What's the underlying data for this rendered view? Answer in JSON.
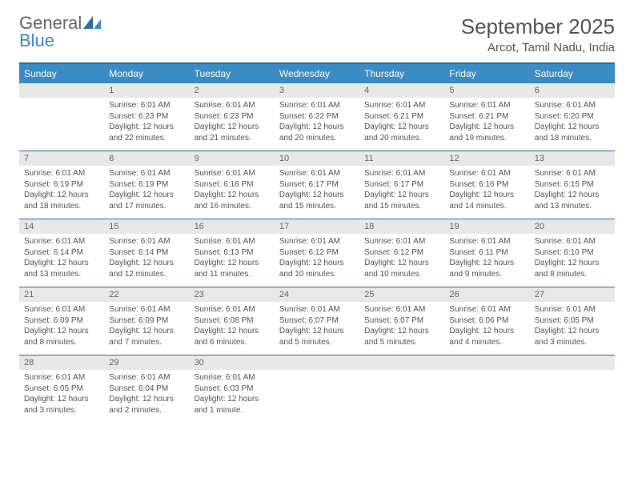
{
  "logo": {
    "general": "General",
    "blue": "Blue"
  },
  "title": "September 2025",
  "location": "Arcot, Tamil Nadu, India",
  "colors": {
    "header_bg": "#3b8bc4",
    "header_border": "#2f6ea3",
    "date_bg": "#e8e8e8",
    "text": "#555555",
    "logo_blue": "#3b8bc4",
    "logo_gray": "#666666"
  },
  "day_names": [
    "Sunday",
    "Monday",
    "Tuesday",
    "Wednesday",
    "Thursday",
    "Friday",
    "Saturday"
  ],
  "weeks": [
    [
      {
        "date": "",
        "sunrise": "",
        "sunset": "",
        "daylight": ""
      },
      {
        "date": "1",
        "sunrise": "Sunrise: 6:01 AM",
        "sunset": "Sunset: 6:23 PM",
        "daylight": "Daylight: 12 hours and 22 minutes."
      },
      {
        "date": "2",
        "sunrise": "Sunrise: 6:01 AM",
        "sunset": "Sunset: 6:23 PM",
        "daylight": "Daylight: 12 hours and 21 minutes."
      },
      {
        "date": "3",
        "sunrise": "Sunrise: 6:01 AM",
        "sunset": "Sunset: 6:22 PM",
        "daylight": "Daylight: 12 hours and 20 minutes."
      },
      {
        "date": "4",
        "sunrise": "Sunrise: 6:01 AM",
        "sunset": "Sunset: 6:21 PM",
        "daylight": "Daylight: 12 hours and 20 minutes."
      },
      {
        "date": "5",
        "sunrise": "Sunrise: 6:01 AM",
        "sunset": "Sunset: 6:21 PM",
        "daylight": "Daylight: 12 hours and 19 minutes."
      },
      {
        "date": "6",
        "sunrise": "Sunrise: 6:01 AM",
        "sunset": "Sunset: 6:20 PM",
        "daylight": "Daylight: 12 hours and 18 minutes."
      }
    ],
    [
      {
        "date": "7",
        "sunrise": "Sunrise: 6:01 AM",
        "sunset": "Sunset: 6:19 PM",
        "daylight": "Daylight: 12 hours and 18 minutes."
      },
      {
        "date": "8",
        "sunrise": "Sunrise: 6:01 AM",
        "sunset": "Sunset: 6:19 PM",
        "daylight": "Daylight: 12 hours and 17 minutes."
      },
      {
        "date": "9",
        "sunrise": "Sunrise: 6:01 AM",
        "sunset": "Sunset: 6:18 PM",
        "daylight": "Daylight: 12 hours and 16 minutes."
      },
      {
        "date": "10",
        "sunrise": "Sunrise: 6:01 AM",
        "sunset": "Sunset: 6:17 PM",
        "daylight": "Daylight: 12 hours and 15 minutes."
      },
      {
        "date": "11",
        "sunrise": "Sunrise: 6:01 AM",
        "sunset": "Sunset: 6:17 PM",
        "daylight": "Daylight: 12 hours and 15 minutes."
      },
      {
        "date": "12",
        "sunrise": "Sunrise: 6:01 AM",
        "sunset": "Sunset: 6:16 PM",
        "daylight": "Daylight: 12 hours and 14 minutes."
      },
      {
        "date": "13",
        "sunrise": "Sunrise: 6:01 AM",
        "sunset": "Sunset: 6:15 PM",
        "daylight": "Daylight: 12 hours and 13 minutes."
      }
    ],
    [
      {
        "date": "14",
        "sunrise": "Sunrise: 6:01 AM",
        "sunset": "Sunset: 6:14 PM",
        "daylight": "Daylight: 12 hours and 13 minutes."
      },
      {
        "date": "15",
        "sunrise": "Sunrise: 6:01 AM",
        "sunset": "Sunset: 6:14 PM",
        "daylight": "Daylight: 12 hours and 12 minutes."
      },
      {
        "date": "16",
        "sunrise": "Sunrise: 6:01 AM",
        "sunset": "Sunset: 6:13 PM",
        "daylight": "Daylight: 12 hours and 11 minutes."
      },
      {
        "date": "17",
        "sunrise": "Sunrise: 6:01 AM",
        "sunset": "Sunset: 6:12 PM",
        "daylight": "Daylight: 12 hours and 10 minutes."
      },
      {
        "date": "18",
        "sunrise": "Sunrise: 6:01 AM",
        "sunset": "Sunset: 6:12 PM",
        "daylight": "Daylight: 12 hours and 10 minutes."
      },
      {
        "date": "19",
        "sunrise": "Sunrise: 6:01 AM",
        "sunset": "Sunset: 6:11 PM",
        "daylight": "Daylight: 12 hours and 9 minutes."
      },
      {
        "date": "20",
        "sunrise": "Sunrise: 6:01 AM",
        "sunset": "Sunset: 6:10 PM",
        "daylight": "Daylight: 12 hours and 8 minutes."
      }
    ],
    [
      {
        "date": "21",
        "sunrise": "Sunrise: 6:01 AM",
        "sunset": "Sunset: 6:09 PM",
        "daylight": "Daylight: 12 hours and 8 minutes."
      },
      {
        "date": "22",
        "sunrise": "Sunrise: 6:01 AM",
        "sunset": "Sunset: 6:09 PM",
        "daylight": "Daylight: 12 hours and 7 minutes."
      },
      {
        "date": "23",
        "sunrise": "Sunrise: 6:01 AM",
        "sunset": "Sunset: 6:08 PM",
        "daylight": "Daylight: 12 hours and 6 minutes."
      },
      {
        "date": "24",
        "sunrise": "Sunrise: 6:01 AM",
        "sunset": "Sunset: 6:07 PM",
        "daylight": "Daylight: 12 hours and 5 minutes."
      },
      {
        "date": "25",
        "sunrise": "Sunrise: 6:01 AM",
        "sunset": "Sunset: 6:07 PM",
        "daylight": "Daylight: 12 hours and 5 minutes."
      },
      {
        "date": "26",
        "sunrise": "Sunrise: 6:01 AM",
        "sunset": "Sunset: 6:06 PM",
        "daylight": "Daylight: 12 hours and 4 minutes."
      },
      {
        "date": "27",
        "sunrise": "Sunrise: 6:01 AM",
        "sunset": "Sunset: 6:05 PM",
        "daylight": "Daylight: 12 hours and 3 minutes."
      }
    ],
    [
      {
        "date": "28",
        "sunrise": "Sunrise: 6:01 AM",
        "sunset": "Sunset: 6:05 PM",
        "daylight": "Daylight: 12 hours and 3 minutes."
      },
      {
        "date": "29",
        "sunrise": "Sunrise: 6:01 AM",
        "sunset": "Sunset: 6:04 PM",
        "daylight": "Daylight: 12 hours and 2 minutes."
      },
      {
        "date": "30",
        "sunrise": "Sunrise: 6:01 AM",
        "sunset": "Sunset: 6:03 PM",
        "daylight": "Daylight: 12 hours and 1 minute."
      },
      {
        "date": "",
        "sunrise": "",
        "sunset": "",
        "daylight": ""
      },
      {
        "date": "",
        "sunrise": "",
        "sunset": "",
        "daylight": ""
      },
      {
        "date": "",
        "sunrise": "",
        "sunset": "",
        "daylight": ""
      },
      {
        "date": "",
        "sunrise": "",
        "sunset": "",
        "daylight": ""
      }
    ]
  ]
}
